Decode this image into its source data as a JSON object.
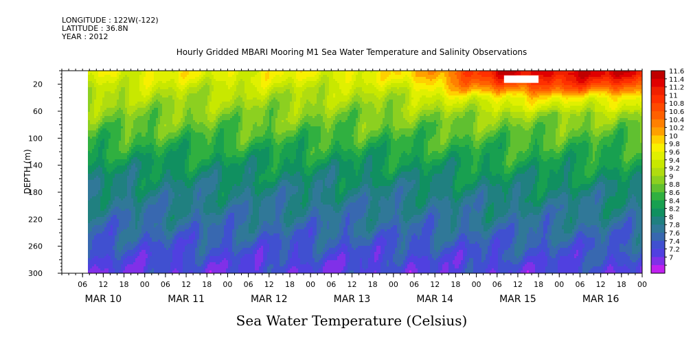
{
  "meta": {
    "longitude": "LONGITUDE : 122W(-122)",
    "latitude": "LATITUDE : 36.8N",
    "year": "YEAR : 2012"
  },
  "chart_data": {
    "type": "heatmap",
    "title": "Hourly Gridded MBARI Mooring M1 Sea Water Temperature and Salinity Observations",
    "subtitle": "Sea Water Temperature (Celsius)",
    "ylabel": "DEPTH (m)",
    "xlabel": "",
    "y_axis": {
      "range": [
        300,
        0
      ],
      "inverted": true,
      "ticks": [
        20,
        60,
        100,
        140,
        180,
        220,
        260,
        300
      ]
    },
    "x_axis": {
      "range_hours": [
        0,
        168
      ],
      "hour_tick_labels": [
        "06",
        "12",
        "18",
        "00",
        "06",
        "12",
        "18",
        "00",
        "06",
        "12",
        "18",
        "00",
        "06",
        "12",
        "18",
        "00",
        "06",
        "12",
        "18",
        "00",
        "06",
        "12",
        "18",
        "00",
        "06",
        "12",
        "18",
        "00"
      ],
      "day_labels": [
        "MAR 10",
        "MAR 11",
        "MAR 12",
        "MAR 13",
        "MAR 14",
        "MAR 15",
        "MAR 16"
      ]
    },
    "data_start": "MAR 10 09:00",
    "missing_block": {
      "start": "MAR 15 08:00",
      "end": "MAR 15 18:00",
      "depth_range": [
        7,
        18
      ]
    },
    "colorbar": {
      "levels": [
        "11.6",
        "11.4",
        "11.2",
        "11",
        "10.8",
        "10.6",
        "10.4",
        "10.2",
        "10",
        "9.8",
        "9.6",
        "9.4",
        "9.2",
        "9",
        "8.8",
        "8.6",
        "8.4",
        "8.2",
        "8",
        "7.8",
        "7.6",
        "7.4",
        "7.2",
        "7"
      ],
      "colors": [
        "#c00000",
        "#e00000",
        "#f02000",
        "#ff3000",
        "#ff4a00",
        "#ff6000",
        "#ff8000",
        "#ffa000",
        "#ffd000",
        "#f8f000",
        "#e0f000",
        "#c8e800",
        "#b0dc10",
        "#8cd020",
        "#60c030",
        "#30b040",
        "#18a050",
        "#109060",
        "#208080",
        "#307898",
        "#3868b0",
        "#4050d0",
        "#5040e0",
        "#8030e8",
        "#c020f0"
      ],
      "extend_color_below": "#d020ff"
    },
    "temperature_profile_by_depth": {
      "depths": [
        5,
        10,
        20,
        30,
        40,
        60,
        80,
        100,
        120,
        140,
        160,
        180,
        200,
        220,
        240,
        260,
        280,
        300
      ],
      "before_mar14": [
        9.75,
        9.7,
        9.55,
        9.4,
        9.3,
        9.1,
        8.95,
        8.75,
        8.55,
        8.35,
        8.2,
        8.05,
        7.95,
        7.85,
        7.7,
        7.55,
        7.4,
        7.3
      ],
      "after_mar16": [
        11.5,
        11.3,
        11.0,
        10.5,
        9.9,
        9.4,
        9.05,
        8.85,
        8.7,
        8.55,
        8.4,
        8.2,
        8.05,
        7.95,
        7.8,
        7.65,
        7.5,
        7.35
      ]
    }
  }
}
